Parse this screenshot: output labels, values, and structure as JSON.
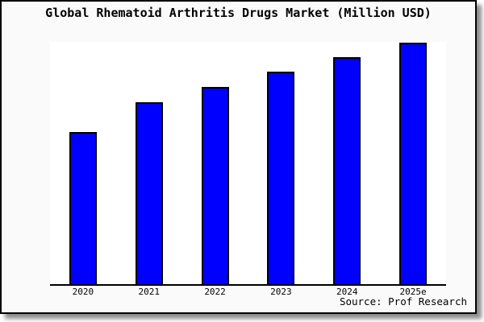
{
  "frame": {
    "background": "#fafafa",
    "border_color": "#000000",
    "plot_background": "#ffffff"
  },
  "source_credit": "Source: Prof Research",
  "chart_data": {
    "type": "bar",
    "title": "Global Rhematoid Arthritis Drugs Market (Million USD)",
    "categories": [
      "2020",
      "2021",
      "2022",
      "2023",
      "2024",
      "2025e"
    ],
    "values": [
      62.8,
      75.1,
      81.4,
      87.7,
      93.7,
      99.7
    ],
    "xlabel": "",
    "ylabel": "",
    "ylim": [
      0,
      100
    ],
    "grid": "off",
    "legend": "none",
    "y_axis_labels": "none",
    "bar_color": "#0000ff",
    "bar_edge_color": "#000000"
  }
}
